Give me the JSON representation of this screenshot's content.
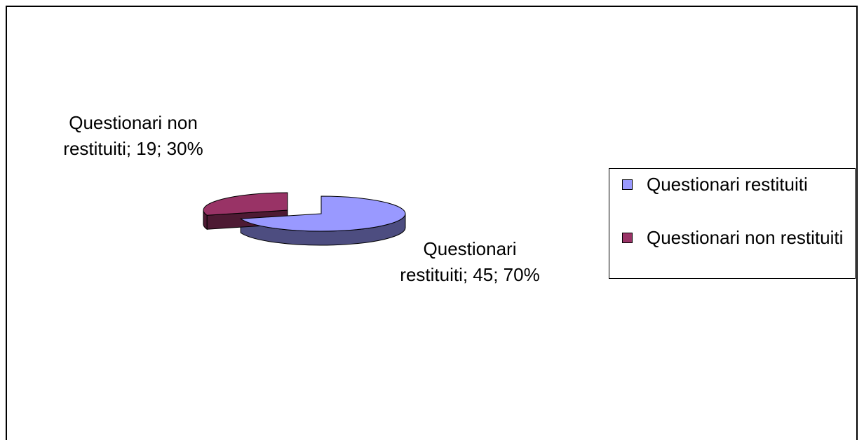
{
  "chart_data": {
    "type": "pie",
    "categories": [
      "Questionari restituiti",
      "Questionari non restituiti"
    ],
    "values": [
      45,
      19
    ],
    "value_labels": [
      "Questionari restituiti; 45; 70%",
      "Questionari non restituiti; 19; 30%"
    ],
    "colors": [
      "#9999ff",
      "#993366"
    ],
    "legend": "right"
  }
}
